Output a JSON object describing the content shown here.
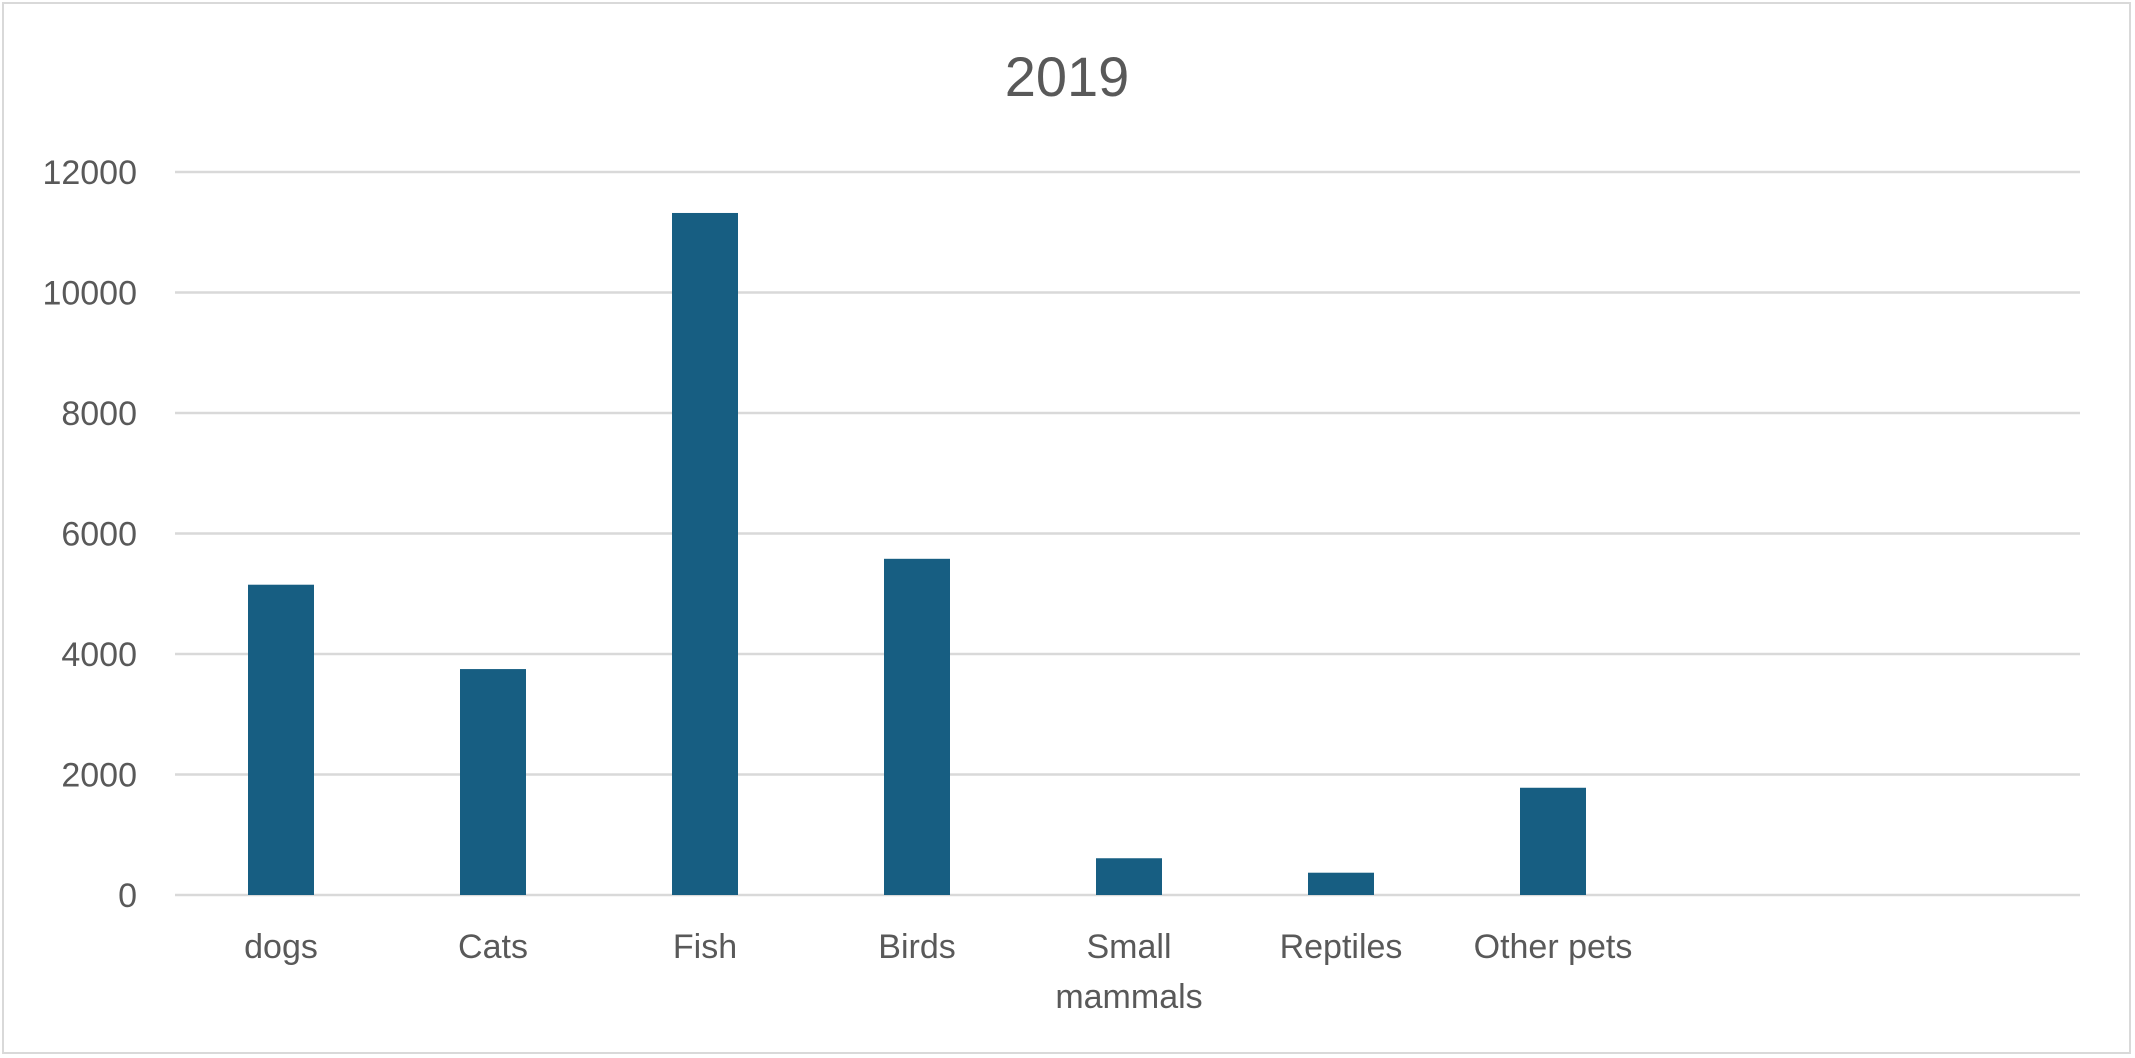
{
  "chart_data": {
    "type": "bar",
    "title": "2019",
    "xlabel": "",
    "ylabel": "",
    "categories": [
      "dogs",
      "Cats",
      "Fish",
      "Birds",
      "Small mammals",
      "Reptiles",
      "Other pets"
    ],
    "category_lines": [
      [
        "dogs"
      ],
      [
        "Cats"
      ],
      [
        "Fish"
      ],
      [
        "Birds"
      ],
      [
        "Small",
        "mammals"
      ],
      [
        "Reptiles"
      ],
      [
        "Other pets"
      ]
    ],
    "series": [
      {
        "values": [
          5150,
          3750,
          11320,
          5580,
          610,
          370,
          1780
        ],
        "color": "#175e82"
      }
    ],
    "ylim": [
      0,
      12000
    ],
    "yticks": [
      "0",
      "2000",
      "4000",
      "6000",
      "8000",
      "10000",
      "12000"
    ],
    "grid": true,
    "legend": "none"
  }
}
